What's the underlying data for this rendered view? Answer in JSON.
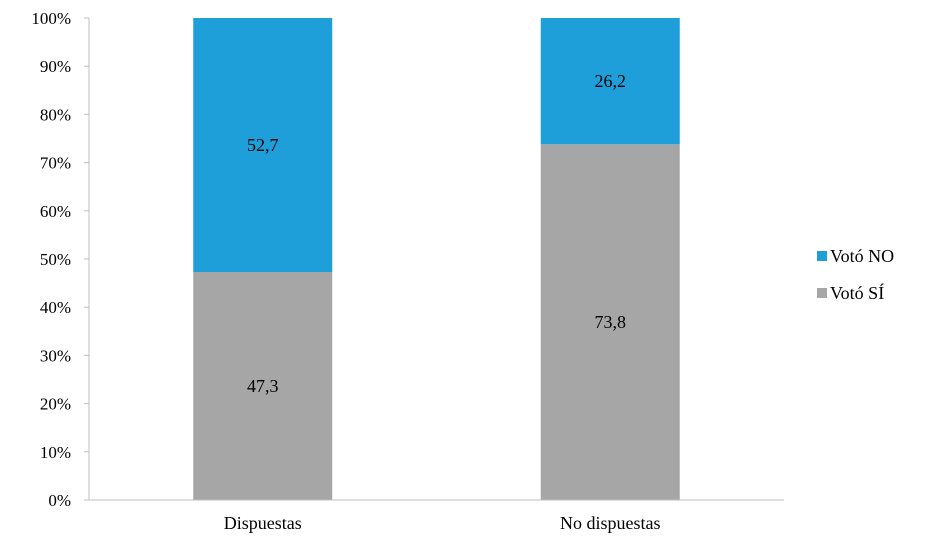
{
  "chart_data": {
    "type": "bar",
    "stacked": true,
    "percent_stacked": true,
    "categories": [
      "Dispuestas",
      "No dispuestas"
    ],
    "series": [
      {
        "name": "Votó SÍ",
        "values": [
          47.3,
          73.8
        ],
        "labels": [
          "47,3",
          "73,8"
        ],
        "color": "#a6a6a6"
      },
      {
        "name": "Votó NO",
        "values": [
          52.7,
          26.2
        ],
        "labels": [
          "52,7",
          "26,2"
        ],
        "color": "#1f9fd9"
      }
    ],
    "y_ticks": [
      "0%",
      "10%",
      "20%",
      "30%",
      "40%",
      "50%",
      "60%",
      "70%",
      "80%",
      "90%",
      "100%"
    ],
    "ylim": [
      0,
      100
    ],
    "grid": false,
    "legend": {
      "position": "right",
      "order": [
        "Votó NO",
        "Votó SÍ"
      ]
    },
    "title": "",
    "xlabel": "",
    "ylabel": ""
  }
}
